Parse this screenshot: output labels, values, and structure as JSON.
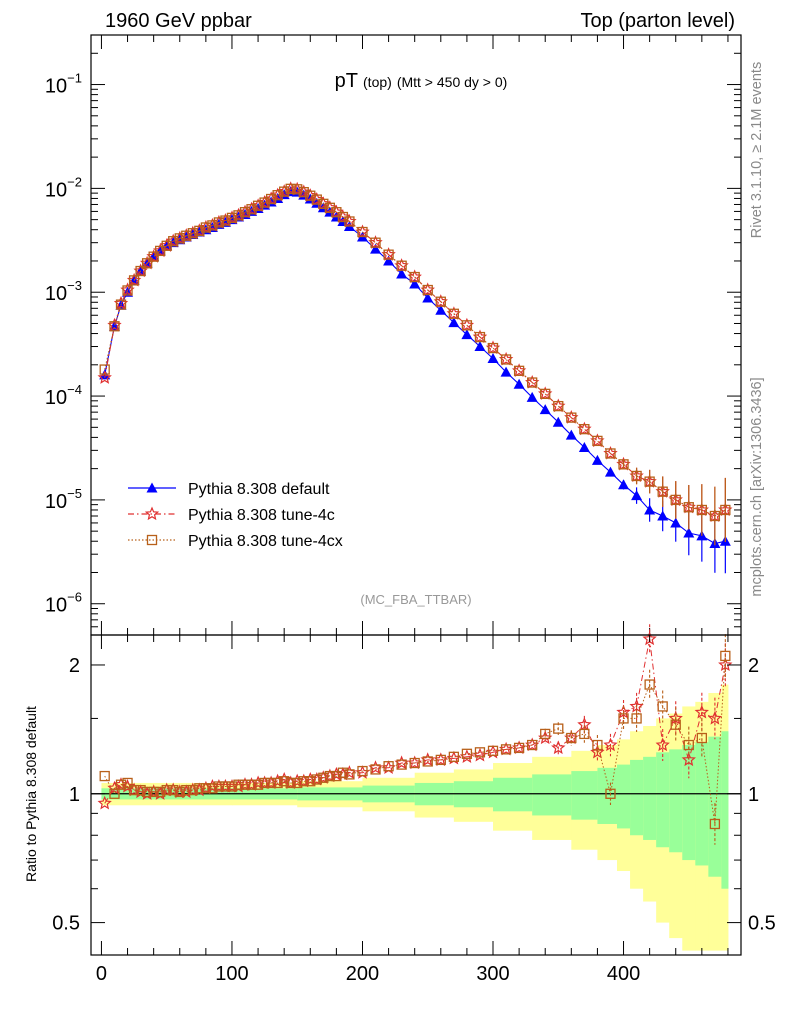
{
  "header": {
    "left": "1960 GeV ppbar",
    "right": "Top (parton level)"
  },
  "side_labels": {
    "rivet": "Rivet 3.1.10, ≥ 2.1M events",
    "mcplots": "mcplots.cern.ch [arXiv:1306.3436]"
  },
  "chart_data": [
    {
      "type": "line",
      "panel": "main",
      "title_main": "pT",
      "title_sub1": "(top)",
      "title_sub2": "(Mtt > 450 dy > 0)",
      "watermark": "(MC_FBA_TTBAR)",
      "xlim": [
        -8,
        490
      ],
      "ylim": [
        5e-07,
        0.3
      ],
      "yscale": "log",
      "y_ticks": [
        {
          "value": 0.1,
          "base": "10",
          "exp": "−1"
        },
        {
          "value": 0.01,
          "base": "10",
          "exp": "−2"
        },
        {
          "value": 0.001,
          "base": "10",
          "exp": "−3"
        },
        {
          "value": 0.0001,
          "base": "10",
          "exp": "−4"
        },
        {
          "value": 1e-05,
          "base": "10",
          "exp": "−5"
        },
        {
          "value": 1e-06,
          "base": "10",
          "exp": "−6"
        }
      ],
      "legend": [
        "Pythia 8.308 default",
        "Pythia 8.308 tune-4c",
        "Pythia 8.308 tune-4cx"
      ],
      "legend_position": "bottom-left",
      "x": [
        2.5,
        10,
        15,
        20,
        25,
        30,
        35,
        40,
        45,
        50,
        55,
        60,
        65,
        70,
        75,
        80,
        85,
        90,
        95,
        100,
        105,
        110,
        115,
        120,
        125,
        130,
        135,
        140,
        145,
        150,
        155,
        160,
        165,
        170,
        175,
        180,
        185,
        190,
        200,
        210,
        220,
        230,
        240,
        250,
        260,
        270,
        280,
        290,
        300,
        310,
        320,
        330,
        340,
        350,
        360,
        370,
        380,
        390,
        400,
        410,
        420,
        430,
        440,
        450,
        460,
        470,
        478
      ],
      "series": [
        {
          "name": "Pythia 8.308 default",
          "color": "#0000ff",
          "marker": "triangle",
          "values": [
            0.00016,
            0.00047,
            0.00075,
            0.001,
            0.0013,
            0.0016,
            0.0019,
            0.0022,
            0.0025,
            0.0028,
            0.003,
            0.0032,
            0.0034,
            0.0036,
            0.0038,
            0.004,
            0.0042,
            0.0045,
            0.0047,
            0.005,
            0.0053,
            0.0056,
            0.006,
            0.0064,
            0.0069,
            0.0074,
            0.008,
            0.0087,
            0.0093,
            0.0092,
            0.0086,
            0.0079,
            0.0072,
            0.0065,
            0.0059,
            0.0053,
            0.0048,
            0.0043,
            0.0034,
            0.0026,
            0.002,
            0.0015,
            0.0012,
            0.00088,
            0.00067,
            0.00051,
            0.00039,
            0.0003,
            0.00023,
            0.00017,
            0.00013,
            9.7e-05,
            7.4e-05,
            5.6e-05,
            4.2e-05,
            3.2e-05,
            2.4e-05,
            1.85e-05,
            1.4e-05,
            1.1e-05,
            8e-06,
            7e-06,
            6e-06,
            4.8e-06,
            4.5e-06,
            3.8e-06,
            4e-06
          ]
        },
        {
          "name": "Pythia 8.308 tune-4c",
          "color": "#e03030",
          "marker": "star",
          "values": [
            0.00015,
            0.00048,
            0.00078,
            0.00105,
            0.0013,
            0.0016,
            0.0019,
            0.0022,
            0.0025,
            0.0028,
            0.0031,
            0.0033,
            0.0035,
            0.0037,
            0.0039,
            0.0042,
            0.0044,
            0.0047,
            0.0049,
            0.0052,
            0.0055,
            0.0059,
            0.0063,
            0.0068,
            0.0073,
            0.0079,
            0.0086,
            0.0093,
            0.0099,
            0.0098,
            0.0092,
            0.0085,
            0.0078,
            0.0071,
            0.0065,
            0.0059,
            0.0053,
            0.0048,
            0.0038,
            0.003,
            0.0023,
            0.0018,
            0.0014,
            0.00105,
            0.00081,
            0.00062,
            0.00048,
            0.00037,
            0.00029,
            0.000225,
            0.000175,
            0.000135,
            0.000105,
            8e-05,
            6.2e-05,
            4.8e-05,
            3.7e-05,
            2.8e-05,
            2.2e-05,
            1.7e-05,
            1.5e-05,
            1.2e-05,
            1e-05,
            8.5e-06,
            8e-06,
            7e-06,
            8e-06
          ]
        },
        {
          "name": "Pythia 8.308 tune-4cx",
          "color": "#b8601a",
          "marker": "square",
          "values": [
            0.00018,
            0.00047,
            0.00076,
            0.00104,
            0.0013,
            0.0016,
            0.0019,
            0.0022,
            0.0025,
            0.0028,
            0.0031,
            0.0033,
            0.0035,
            0.0037,
            0.0039,
            0.0042,
            0.0044,
            0.0047,
            0.0049,
            0.0052,
            0.0055,
            0.0059,
            0.0063,
            0.0068,
            0.0073,
            0.0079,
            0.0086,
            0.0093,
            0.0099,
            0.0098,
            0.0092,
            0.0085,
            0.0078,
            0.0071,
            0.0065,
            0.0059,
            0.0053,
            0.0048,
            0.0038,
            0.003,
            0.0023,
            0.0018,
            0.0014,
            0.00105,
            0.00081,
            0.00062,
            0.00048,
            0.00037,
            0.00029,
            0.000225,
            0.000175,
            0.000135,
            0.000105,
            8e-05,
            6.2e-05,
            4.8e-05,
            3.7e-05,
            2.8e-05,
            2.2e-05,
            1.7e-05,
            1.5e-05,
            1.2e-05,
            1e-05,
            8.5e-06,
            8e-06,
            7e-06,
            8e-06
          ]
        }
      ]
    },
    {
      "type": "line",
      "panel": "ratio",
      "ylabel": "Ratio to Pythia 8.308 default",
      "xlim": [
        -8,
        490
      ],
      "ylim": [
        0.42,
        2.35
      ],
      "yscale": "log",
      "y_ticks": [
        0.5,
        1,
        2
      ],
      "y_tick_labels": [
        "0.5",
        "1",
        "2"
      ],
      "x_ticks": [
        0,
        100,
        200,
        300,
        400
      ],
      "x_tick_labels": [
        "0",
        "100",
        "200",
        "300",
        "400"
      ],
      "band_edges": [
        0,
        100,
        150,
        200,
        240,
        270,
        300,
        330,
        360,
        380,
        395,
        405,
        415,
        425,
        435,
        445,
        455,
        465,
        475,
        480
      ],
      "band_green": [
        0.03,
        0.03,
        0.035,
        0.045,
        0.06,
        0.07,
        0.09,
        0.11,
        0.13,
        0.15,
        0.17,
        0.2,
        0.22,
        0.25,
        0.27,
        0.3,
        0.32,
        0.36,
        0.4
      ],
      "band_yellow": [
        0.06,
        0.06,
        0.07,
        0.09,
        0.12,
        0.14,
        0.18,
        0.22,
        0.26,
        0.3,
        0.34,
        0.4,
        0.44,
        0.5,
        0.54,
        0.6,
        0.64,
        0.72,
        0.8
      ],
      "series": [
        {
          "name": "Pythia 8.308 tune-4c",
          "color": "#e03030",
          "marker": "star",
          "values": [
            0.95,
            1.03,
            1.05,
            1.04,
            1.02,
            1.01,
            1.0,
            1.01,
            1.0,
            1.02,
            1.02,
            1.01,
            1.01,
            1.02,
            1.02,
            1.03,
            1.04,
            1.04,
            1.04,
            1.04,
            1.04,
            1.05,
            1.05,
            1.06,
            1.06,
            1.06,
            1.07,
            1.08,
            1.06,
            1.07,
            1.07,
            1.08,
            1.08,
            1.09,
            1.1,
            1.11,
            1.11,
            1.12,
            1.12,
            1.15,
            1.15,
            1.18,
            1.18,
            1.2,
            1.2,
            1.21,
            1.22,
            1.23,
            1.25,
            1.27,
            1.28,
            1.3,
            1.35,
            1.28,
            1.35,
            1.45,
            1.25,
            1.3,
            1.55,
            1.6,
            2.3,
            1.3,
            1.5,
            1.2,
            1.55,
            1.5,
            2.0
          ]
        },
        {
          "name": "Pythia 8.308 tune-4cx",
          "color": "#b8601a",
          "marker": "square",
          "values": [
            1.1,
            1.0,
            1.05,
            1.06,
            1.02,
            1.02,
            1.01,
            1.01,
            1.01,
            1.02,
            1.02,
            1.01,
            1.02,
            1.02,
            1.03,
            1.03,
            1.03,
            1.04,
            1.04,
            1.04,
            1.05,
            1.05,
            1.05,
            1.05,
            1.06,
            1.06,
            1.06,
            1.07,
            1.06,
            1.06,
            1.07,
            1.07,
            1.08,
            1.09,
            1.1,
            1.1,
            1.12,
            1.11,
            1.13,
            1.14,
            1.16,
            1.17,
            1.18,
            1.19,
            1.2,
            1.22,
            1.24,
            1.25,
            1.26,
            1.27,
            1.28,
            1.3,
            1.38,
            1.42,
            1.35,
            1.38,
            1.3,
            1.0,
            1.5,
            1.5,
            1.8,
            1.6,
            1.45,
            1.3,
            1.35,
            0.85,
            2.1
          ]
        }
      ]
    }
  ]
}
